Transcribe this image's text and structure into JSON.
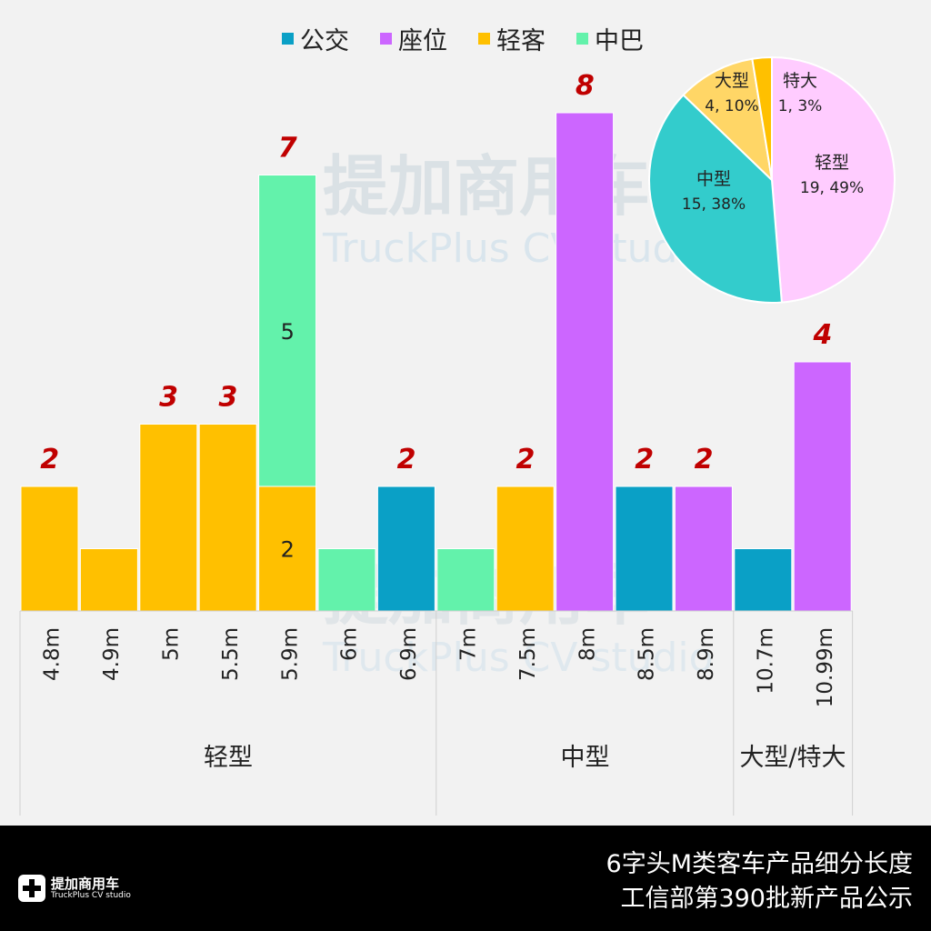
{
  "chart_data": {
    "type": "bar",
    "stacked": true,
    "legend": {
      "position": "top",
      "entries": [
        "公交",
        "座位",
        "轻客",
        "中巴"
      ]
    },
    "categories": [
      "4.8m",
      "4.9m",
      "5m",
      "5.5m",
      "5.9m",
      "6m",
      "6.9m",
      "7m",
      "7.5m",
      "8m",
      "8.5m",
      "8.9m",
      "10.7m",
      "10.99m"
    ],
    "groups": [
      {
        "label": "轻型",
        "count": 7
      },
      {
        "label": "中型",
        "count": 5
      },
      {
        "label": "大型/特大",
        "count": 2
      }
    ],
    "series": [
      {
        "name": "公交",
        "color": "#0aa0c6",
        "values": [
          0,
          0,
          0,
          0,
          0,
          0,
          2,
          0,
          0,
          0,
          2,
          0,
          1,
          0
        ]
      },
      {
        "name": "座位",
        "color": "#cc66ff",
        "values": [
          0,
          0,
          0,
          0,
          0,
          0,
          0,
          0,
          0,
          8,
          0,
          2,
          0,
          4
        ]
      },
      {
        "name": "轻客",
        "color": "#ffc000",
        "values": [
          2,
          1,
          3,
          3,
          2,
          0,
          0,
          0,
          2,
          0,
          0,
          0,
          0,
          0
        ]
      },
      {
        "name": "中巴",
        "color": "#63f2ab",
        "values": [
          0,
          0,
          0,
          0,
          5,
          1,
          0,
          1,
          0,
          0,
          0,
          0,
          0,
          0
        ]
      }
    ],
    "segment_labels": [
      {
        "category": "5.9m",
        "series": "轻客",
        "text": "2"
      },
      {
        "category": "5.9m",
        "series": "中巴",
        "text": "5"
      }
    ],
    "total_labels": [
      "2",
      "",
      "3",
      "3",
      "7",
      "",
      "2",
      "",
      "2",
      "8",
      "2",
      "2",
      "",
      "4"
    ],
    "ylim": [
      0,
      8.5
    ],
    "grid": false,
    "pie": {
      "type": "pie",
      "slices": [
        {
          "label": "轻型",
          "value": 19,
          "percent": "49%",
          "text": "19, 49%",
          "color": "#ffccff"
        },
        {
          "label": "中型",
          "value": 15,
          "percent": "38%",
          "text": "15, 38%",
          "color": "#33cccc"
        },
        {
          "label": "大型",
          "value": 4,
          "percent": "10%",
          "text": "4, 10%",
          "color": "#ffd666"
        },
        {
          "label": "特大",
          "value": 1,
          "percent": "3%",
          "text": "1, 3%",
          "color": "#ffc000"
        }
      ]
    }
  },
  "footer": {
    "title_line1": "6字头M类客车产品细分长度",
    "title_line2": "工信部第390批新产品公示",
    "logo_cn": "提加商用车",
    "logo_en": "TruckPlus CV studio"
  },
  "watermark": {
    "cn": "提加商用车",
    "en": "TruckPlus CV studio"
  }
}
